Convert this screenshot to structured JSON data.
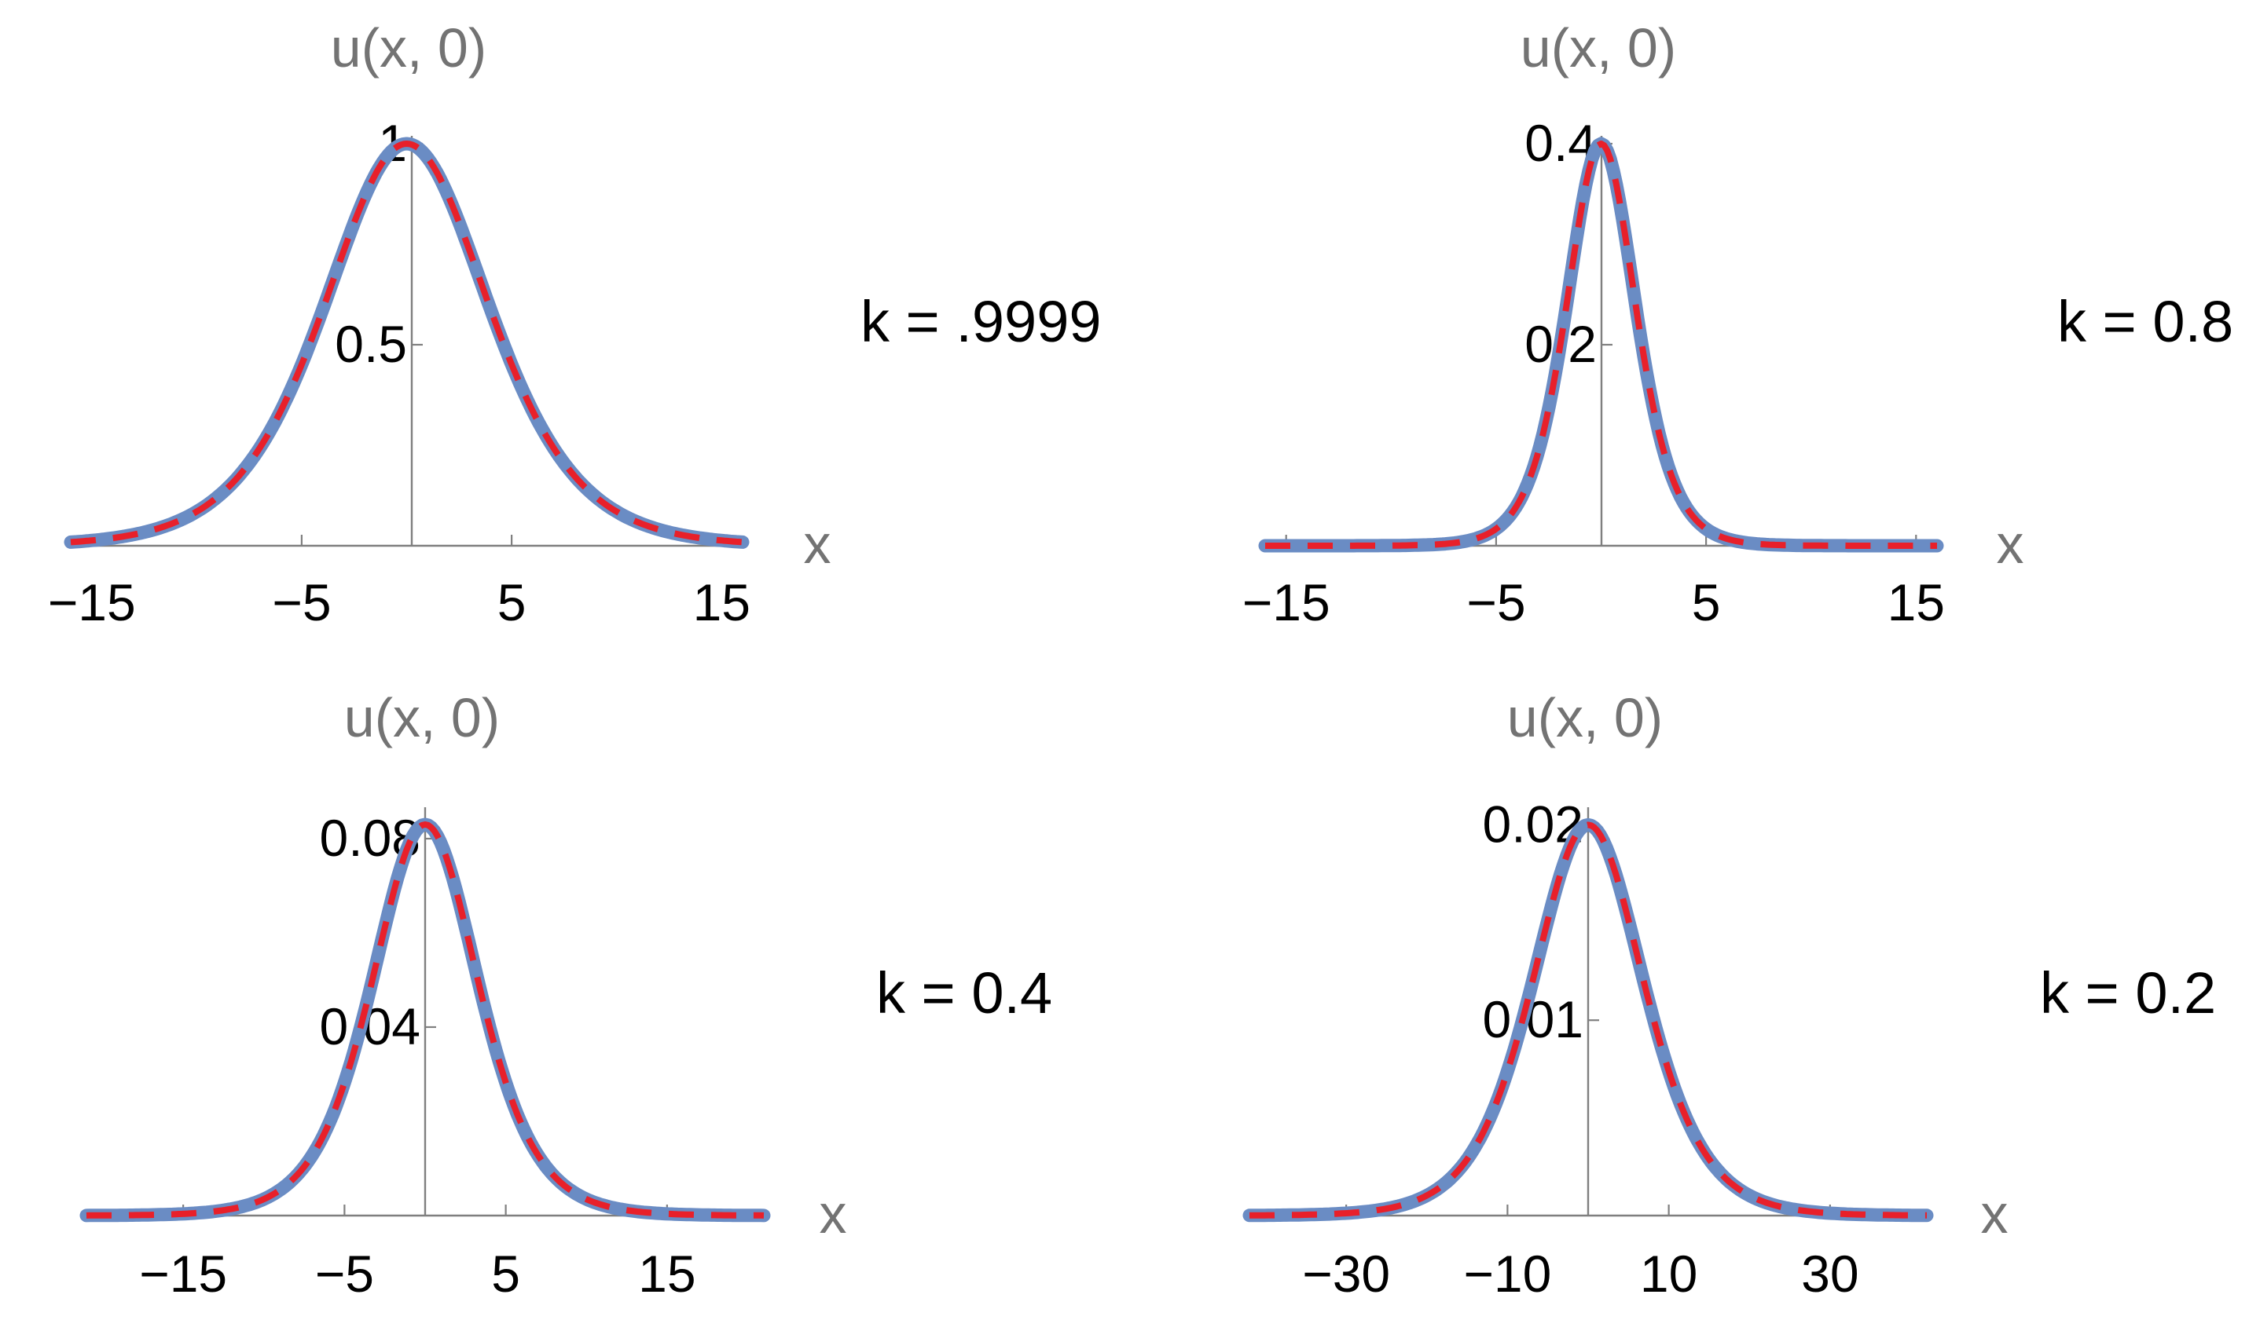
{
  "colors": {
    "exact": "#6a8cc4",
    "approx": "#e8202a"
  },
  "chart_data": [
    {
      "type": "line",
      "panel": "top-left",
      "ylabel": "u(x, 0)",
      "xlabel": "x",
      "annotation": "k = .9999",
      "xlim": [
        -16,
        16
      ],
      "ylim": [
        0,
        1
      ],
      "xticks": [
        -15,
        -5,
        5,
        15
      ],
      "xtick_labels": [
        "−15",
        "−5",
        "5",
        "15"
      ],
      "yticks": [
        0.5,
        1
      ],
      "ytick_labels": [
        "0.5",
        "1"
      ],
      "peak": 1.0,
      "half_width": 5,
      "series": [
        {
          "style": "solid",
          "x": [
            -16,
            -12,
            -10,
            -8,
            -6,
            -5,
            -4,
            -2,
            0,
            2,
            4,
            5,
            6,
            8,
            10,
            12,
            16
          ],
          "values": [
            0.0,
            0.005,
            0.02,
            0.09,
            0.31,
            0.5,
            0.69,
            0.93,
            1.0,
            0.93,
            0.69,
            0.5,
            0.31,
            0.09,
            0.02,
            0.005,
            0.0
          ]
        },
        {
          "style": "dashed",
          "x": [
            -16,
            -12,
            -10,
            -8,
            -6,
            -5,
            -4,
            -2,
            0,
            2,
            4,
            5,
            6,
            8,
            10,
            12,
            16
          ],
          "values": [
            0.0,
            0.005,
            0.02,
            0.09,
            0.31,
            0.5,
            0.69,
            0.93,
            1.0,
            0.93,
            0.69,
            0.5,
            0.31,
            0.09,
            0.02,
            0.005,
            0.0
          ]
        }
      ]
    },
    {
      "type": "line",
      "panel": "top-right",
      "ylabel": "u(x, 0)",
      "xlabel": "x",
      "annotation": "k = 0.8",
      "xlim": [
        -16,
        16
      ],
      "ylim": [
        0,
        0.4
      ],
      "xticks": [
        -15,
        -5,
        5,
        15
      ],
      "xtick_labels": [
        "−15",
        "−5",
        "5",
        "15"
      ],
      "yticks": [
        0.2,
        0.4
      ],
      "ytick_labels": [
        "0.2",
        "0.4"
      ],
      "peak": 0.4,
      "half_width": 2.1,
      "series": [
        {
          "style": "solid",
          "x": [
            -16,
            -8,
            -6,
            -4,
            -2,
            -1,
            0,
            1,
            2,
            4,
            6,
            8,
            16
          ],
          "values": [
            0.0,
            0.004,
            0.015,
            0.06,
            0.21,
            0.34,
            0.4,
            0.34,
            0.21,
            0.06,
            0.015,
            0.004,
            0.0
          ]
        },
        {
          "style": "dashed",
          "x": [
            -16,
            -8,
            -6,
            -4,
            -2,
            -1,
            0,
            1,
            2,
            4,
            6,
            8,
            16
          ],
          "values": [
            0.0,
            0.004,
            0.015,
            0.06,
            0.21,
            0.34,
            0.4,
            0.34,
            0.21,
            0.06,
            0.015,
            0.004,
            0.0
          ]
        }
      ]
    },
    {
      "type": "line",
      "panel": "bottom-left",
      "ylabel": "u(x, 0)",
      "xlabel": "x",
      "annotation": "k = 0.4",
      "xlim": [
        -21,
        21
      ],
      "ylim": [
        0,
        0.085
      ],
      "xticks": [
        -15,
        -5,
        5,
        15
      ],
      "xtick_labels": [
        "−15",
        "−5",
        "5",
        "15"
      ],
      "yticks": [
        0.04,
        0.08
      ],
      "ytick_labels": [
        "0.04",
        "0.08"
      ],
      "peak": 0.083,
      "half_width": 4.2,
      "series": [
        {
          "style": "solid",
          "x": [
            -21,
            -15,
            -10,
            -6,
            -3,
            0,
            3,
            6,
            10,
            15,
            21
          ],
          "values": [
            0.0,
            0.004,
            0.014,
            0.04,
            0.069,
            0.083,
            0.069,
            0.04,
            0.014,
            0.004,
            0.0
          ]
        },
        {
          "style": "dashed",
          "x": [
            -21,
            -15,
            -10,
            -6,
            -3,
            0,
            3,
            6,
            10,
            15,
            21
          ],
          "values": [
            0.0,
            0.004,
            0.014,
            0.04,
            0.069,
            0.083,
            0.069,
            0.04,
            0.014,
            0.004,
            0.0
          ]
        }
      ]
    },
    {
      "type": "line",
      "panel": "bottom-right",
      "ylabel": "u(x, 0)",
      "xlabel": "x",
      "annotation": "k = 0.2",
      "xlim": [
        -42,
        42
      ],
      "ylim": [
        0,
        0.0205
      ],
      "xticks": [
        -30,
        -10,
        10,
        30
      ],
      "xtick_labels": [
        "−30",
        "−10",
        "10",
        "30"
      ],
      "yticks": [
        0.01,
        0.02
      ],
      "ytick_labels": [
        "0.01",
        "0.02"
      ],
      "peak": 0.02,
      "half_width": 8.8,
      "series": [
        {
          "style": "solid",
          "x": [
            -42,
            -30,
            -20,
            -12,
            -6,
            0,
            6,
            12,
            20,
            30,
            42
          ],
          "values": [
            0.0,
            0.001,
            0.0035,
            0.009,
            0.016,
            0.02,
            0.016,
            0.009,
            0.0035,
            0.001,
            0.0
          ]
        },
        {
          "style": "dashed",
          "x": [
            -42,
            -30,
            -20,
            -12,
            -6,
            0,
            6,
            12,
            20,
            30,
            42
          ],
          "values": [
            0.0,
            0.001,
            0.0035,
            0.009,
            0.016,
            0.02,
            0.016,
            0.009,
            0.0035,
            0.001,
            0.0
          ]
        }
      ]
    }
  ]
}
